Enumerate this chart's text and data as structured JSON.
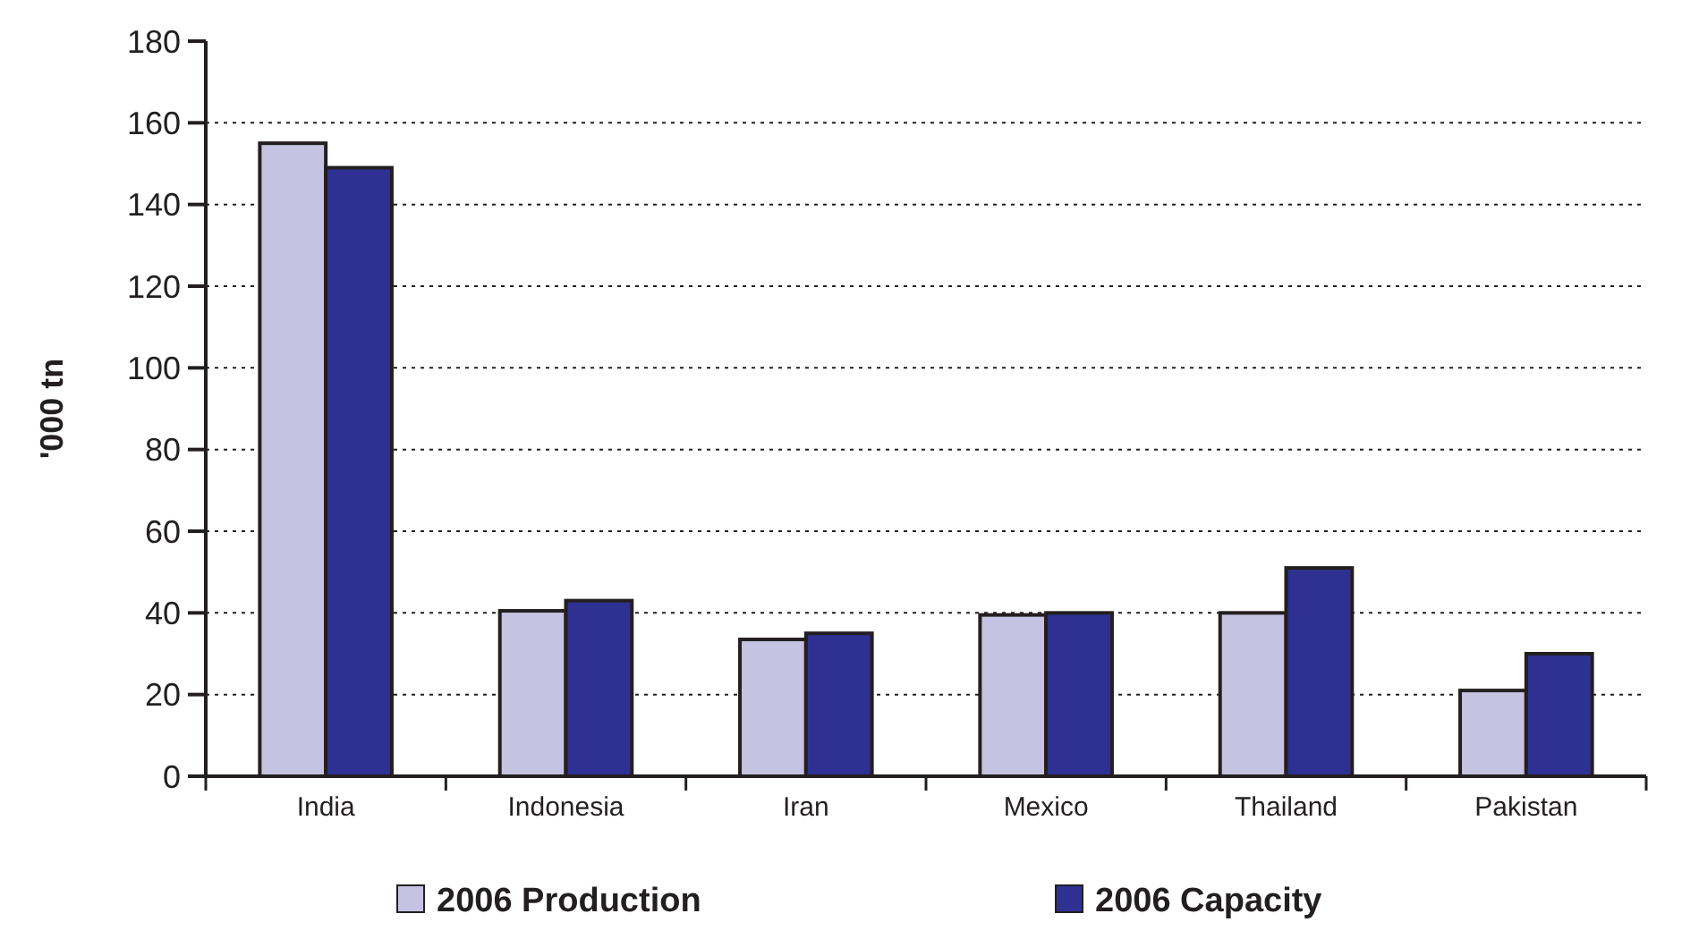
{
  "chart_data": {
    "type": "bar",
    "ylabel": "'000 tn",
    "categories": [
      "India",
      "Indonesia",
      "Iran",
      "Mexico",
      "Thailand",
      "Pakistan"
    ],
    "series": [
      {
        "name": "2006 Production",
        "color": "#c5c3e1",
        "values": [
          155,
          40.5,
          33.5,
          39.5,
          40,
          21
        ]
      },
      {
        "name": "2006 Capacity",
        "color": "#2e3192",
        "values": [
          149,
          43,
          35,
          40,
          51,
          30
        ]
      }
    ],
    "ylim": [
      0,
      180
    ],
    "yticks": [
      0,
      20,
      40,
      60,
      80,
      100,
      120,
      140,
      160,
      180
    ],
    "grid": "y",
    "legend": "bottom"
  }
}
